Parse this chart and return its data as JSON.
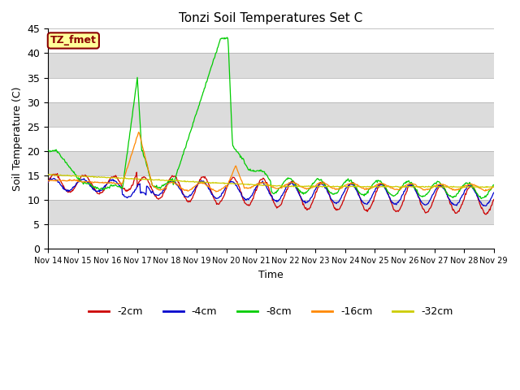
{
  "title": "Tonzi Soil Temperatures Set C",
  "xlabel": "Time",
  "ylabel": "Soil Temperature (C)",
  "ylim": [
    0,
    45
  ],
  "colors": {
    "-2cm": "#cc0000",
    "-4cm": "#0000cc",
    "-8cm": "#00cc00",
    "-16cm": "#ff8800",
    "-32cm": "#cccc00"
  },
  "legend_labels": [
    "-2cm",
    "-4cm",
    "-8cm",
    "-16cm",
    "-32cm"
  ],
  "annotation_label": "TZ_fmet",
  "annotation_bg": "#ffff99",
  "annotation_border": "#8b0000",
  "tick_labels": [
    "Nov 14",
    "Nov 15",
    "Nov 16",
    "Nov 17",
    "Nov 18",
    "Nov 19",
    "Nov 20",
    "Nov 21",
    "Nov 22",
    "Nov 23",
    "Nov 24",
    "Nov 25",
    "Nov 26",
    "Nov 27",
    "Nov 28",
    "Nov 29"
  ],
  "num_days": 15,
  "points_per_day": 48,
  "band_colors": [
    "#f0f0f0",
    "#dcdcdc"
  ],
  "plot_bg": "#f0f0f0"
}
